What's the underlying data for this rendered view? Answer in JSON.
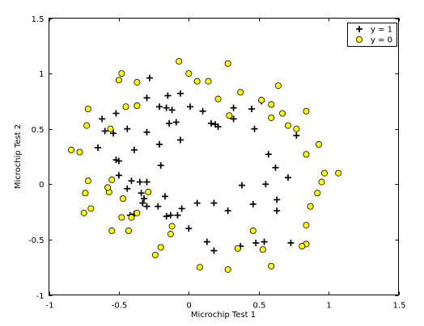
{
  "chart_data": {
    "type": "scatter",
    "title": "",
    "xlabel": "Microchip Test 1",
    "ylabel": "Microchip Test 2",
    "xlim": [
      -1,
      1.5
    ],
    "ylim": [
      -1,
      1.5
    ],
    "xticks": [
      -1,
      -0.5,
      0,
      0.5,
      1,
      1.5
    ],
    "yticks": [
      -1,
      -0.5,
      0,
      0.5,
      1,
      1.5
    ],
    "xtick_labels": [
      "-1",
      "-0.5",
      "0",
      "0.5",
      "1",
      "1.5"
    ],
    "ytick_labels": [
      "-1",
      "-0.5",
      "0",
      "0.5",
      "1",
      "1.5"
    ],
    "grid": false,
    "legend_position": "top-right",
    "series": [
      {
        "name": "y = 1",
        "marker": "plus",
        "color": "#000000",
        "points": [
          [
            -0.28,
            0.96
          ],
          [
            -0.3,
            0.78
          ],
          [
            -0.21,
            0.7
          ],
          [
            -0.15,
            0.8
          ],
          [
            -0.06,
            0.82
          ],
          [
            0.01,
            0.7
          ],
          [
            -0.16,
            0.69
          ],
          [
            -0.12,
            0.67
          ],
          [
            -0.14,
            0.55
          ],
          [
            -0.09,
            0.56
          ],
          [
            0.1,
            0.66
          ],
          [
            0.16,
            0.55
          ],
          [
            0.19,
            0.54
          ],
          [
            0.21,
            0.52
          ],
          [
            0.32,
            0.69
          ],
          [
            0.32,
            0.59
          ],
          [
            0.45,
            0.68
          ],
          [
            0.52,
            0.75
          ],
          [
            0.47,
            0.5
          ],
          [
            0.57,
            0.27
          ],
          [
            0.62,
            0.15
          ],
          [
            0.55,
            0.0
          ],
          [
            0.63,
            -0.14
          ],
          [
            0.63,
            -0.24
          ],
          [
            0.71,
            0.06
          ],
          [
            0.77,
            0.44
          ],
          [
            0.73,
            -0.53
          ],
          [
            0.54,
            -0.52
          ],
          [
            0.48,
            -0.53
          ],
          [
            0.37,
            -0.56
          ],
          [
            0.18,
            -0.6
          ],
          [
            0.13,
            -0.52
          ],
          [
            0.0,
            -0.4
          ],
          [
            -0.13,
            -0.28
          ],
          [
            -0.08,
            -0.28
          ],
          [
            -0.16,
            -0.29
          ],
          [
            -0.22,
            -0.2
          ],
          [
            -0.3,
            -0.2
          ],
          [
            -0.33,
            -0.17
          ],
          [
            -0.39,
            -0.27
          ],
          [
            -0.42,
            -0.28
          ],
          [
            -0.44,
            -0.04
          ],
          [
            -0.35,
            0.02
          ],
          [
            -0.3,
            0.02
          ],
          [
            -0.41,
            0.03
          ],
          [
            -0.5,
            0.08
          ],
          [
            -0.5,
            0.21
          ],
          [
            -0.52,
            0.22
          ],
          [
            -0.39,
            0.31
          ],
          [
            -0.3,
            0.47
          ],
          [
            -0.44,
            0.5
          ],
          [
            -0.54,
            0.46
          ],
          [
            -0.6,
            0.48
          ],
          [
            -0.62,
            0.59
          ],
          [
            -0.52,
            0.64
          ],
          [
            -0.65,
            0.33
          ],
          [
            -0.21,
            0.36
          ],
          [
            -0.2,
            0.17
          ],
          [
            -0.06,
            0.4
          ],
          [
            -0.17,
            -0.11
          ],
          [
            0.06,
            -0.17
          ],
          [
            0.18,
            -0.17
          ],
          [
            -0.05,
            -0.22
          ],
          [
            0.38,
            -0.01
          ],
          [
            0.46,
            -0.18
          ],
          [
            0.28,
            -0.24
          ],
          [
            -0.34,
            -0.08
          ],
          [
            -0.32,
            -0.13
          ]
        ]
      },
      {
        "name": "y = 0",
        "marker": "circle",
        "color": "#ffff00",
        "points": [
          [
            -0.07,
            1.11
          ],
          [
            0.28,
            1.09
          ],
          [
            -0.48,
            1.0
          ],
          [
            0.0,
            1.0
          ],
          [
            -0.5,
            0.94
          ],
          [
            -0.37,
            0.92
          ],
          [
            0.06,
            0.93
          ],
          [
            0.14,
            0.93
          ],
          [
            0.37,
            0.83
          ],
          [
            0.64,
            0.89
          ],
          [
            0.52,
            0.76
          ],
          [
            0.59,
            0.72
          ],
          [
            0.67,
            0.64
          ],
          [
            0.21,
            0.77
          ],
          [
            0.29,
            0.62
          ],
          [
            0.59,
            0.6
          ],
          [
            0.71,
            0.53
          ],
          [
            0.84,
            0.66
          ],
          [
            0.77,
            0.5
          ],
          [
            0.93,
            0.36
          ],
          [
            0.84,
            0.27
          ],
          [
            0.97,
            0.1
          ],
          [
            1.07,
            0.1
          ],
          [
            0.95,
            0.02
          ],
          [
            0.92,
            -0.08
          ],
          [
            0.87,
            -0.2
          ],
          [
            0.84,
            -0.37
          ],
          [
            0.84,
            -0.54
          ],
          [
            0.81,
            -0.56
          ],
          [
            0.59,
            -0.74
          ],
          [
            0.53,
            -0.59
          ],
          [
            0.46,
            -0.42
          ],
          [
            0.28,
            -0.77
          ],
          [
            0.35,
            -0.58
          ],
          [
            0.08,
            -0.75
          ],
          [
            -0.2,
            -0.57
          ],
          [
            -0.12,
            -0.38
          ],
          [
            -0.13,
            -0.45
          ],
          [
            -0.24,
            -0.64
          ],
          [
            -0.55,
            -0.42
          ],
          [
            -0.43,
            -0.42
          ],
          [
            -0.37,
            -0.26
          ],
          [
            -0.41,
            -0.3
          ],
          [
            -0.48,
            -0.3
          ],
          [
            -0.47,
            -0.13
          ],
          [
            -0.57,
            -0.07
          ],
          [
            -0.7,
            -0.22
          ],
          [
            -0.72,
            0.03
          ],
          [
            -0.74,
            -0.08
          ],
          [
            -0.75,
            -0.26
          ],
          [
            -0.78,
            0.29
          ],
          [
            -0.84,
            0.31
          ],
          [
            -0.73,
            0.53
          ],
          [
            -0.72,
            0.68
          ],
          [
            -0.56,
            0.5
          ],
          [
            -0.55,
            0.04
          ],
          [
            -0.58,
            -0.03
          ],
          [
            -0.45,
            0.7
          ],
          [
            -0.37,
            0.71
          ],
          [
            -0.29,
            -0.07
          ]
        ]
      }
    ]
  }
}
